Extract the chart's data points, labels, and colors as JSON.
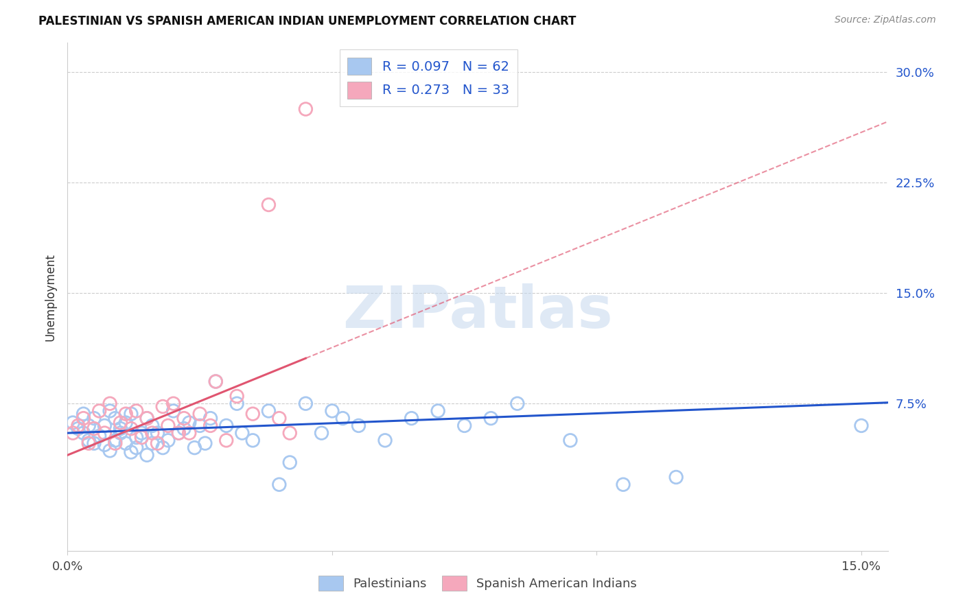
{
  "title": "PALESTINIAN VS SPANISH AMERICAN INDIAN UNEMPLOYMENT CORRELATION CHART",
  "source": "Source: ZipAtlas.com",
  "ylabel_label": "Unemployment",
  "xlim": [
    0.0,
    0.155
  ],
  "ylim": [
    -0.025,
    0.32
  ],
  "yticks": [
    0.075,
    0.15,
    0.225,
    0.3
  ],
  "ytick_labels": [
    "7.5%",
    "15.0%",
    "22.5%",
    "30.0%"
  ],
  "xtick_vals": [
    0.0,
    0.05,
    0.1,
    0.15
  ],
  "xtick_labels": [
    "0.0%",
    "",
    "",
    "15.0%"
  ],
  "blue_fill": "#A8C8F0",
  "pink_fill": "#F5A8BC",
  "blue_line": "#2255CC",
  "pink_line": "#E05570",
  "blue_text": "#2255CC",
  "pink_text": "#E05570",
  "grid_color": "#CCCCCC",
  "legend_r1": "R = 0.097",
  "legend_n1": "N = 62",
  "legend_r2": "R = 0.273",
  "legend_n2": "N = 33",
  "pal_x": [
    0.001,
    0.002,
    0.003,
    0.003,
    0.004,
    0.004,
    0.005,
    0.005,
    0.006,
    0.007,
    0.007,
    0.008,
    0.008,
    0.009,
    0.009,
    0.01,
    0.01,
    0.011,
    0.011,
    0.012,
    0.012,
    0.013,
    0.013,
    0.014,
    0.015,
    0.015,
    0.016,
    0.016,
    0.017,
    0.018,
    0.019,
    0.02,
    0.021,
    0.022,
    0.023,
    0.024,
    0.025,
    0.026,
    0.027,
    0.028,
    0.03,
    0.032,
    0.033,
    0.035,
    0.038,
    0.04,
    0.042,
    0.045,
    0.048,
    0.05,
    0.052,
    0.055,
    0.06,
    0.065,
    0.07,
    0.075,
    0.08,
    0.085,
    0.095,
    0.105,
    0.115,
    0.15
  ],
  "pal_y": [
    0.062,
    0.058,
    0.055,
    0.068,
    0.05,
    0.06,
    0.048,
    0.065,
    0.053,
    0.047,
    0.06,
    0.043,
    0.07,
    0.05,
    0.065,
    0.055,
    0.058,
    0.048,
    0.062,
    0.042,
    0.068,
    0.052,
    0.045,
    0.055,
    0.04,
    0.065,
    0.048,
    0.06,
    0.055,
    0.045,
    0.05,
    0.07,
    0.055,
    0.058,
    0.062,
    0.045,
    0.06,
    0.048,
    0.065,
    0.09,
    0.06,
    0.075,
    0.055,
    0.05,
    0.07,
    0.02,
    0.035,
    0.075,
    0.055,
    0.07,
    0.065,
    0.06,
    0.05,
    0.065,
    0.07,
    0.06,
    0.065,
    0.075,
    0.05,
    0.02,
    0.025,
    0.06
  ],
  "sai_x": [
    0.001,
    0.002,
    0.003,
    0.004,
    0.005,
    0.006,
    0.007,
    0.008,
    0.009,
    0.01,
    0.011,
    0.012,
    0.013,
    0.014,
    0.015,
    0.016,
    0.017,
    0.018,
    0.019,
    0.02,
    0.021,
    0.022,
    0.023,
    0.025,
    0.027,
    0.028,
    0.03,
    0.032,
    0.035,
    0.038,
    0.04,
    0.042,
    0.045
  ],
  "sai_y": [
    0.055,
    0.06,
    0.065,
    0.048,
    0.058,
    0.07,
    0.055,
    0.075,
    0.048,
    0.062,
    0.068,
    0.058,
    0.07,
    0.052,
    0.065,
    0.055,
    0.048,
    0.073,
    0.06,
    0.075,
    0.055,
    0.065,
    0.055,
    0.068,
    0.06,
    0.09,
    0.05,
    0.08,
    0.068,
    0.21,
    0.065,
    0.055,
    0.275
  ],
  "watermark_text": "ZIPatlas"
}
